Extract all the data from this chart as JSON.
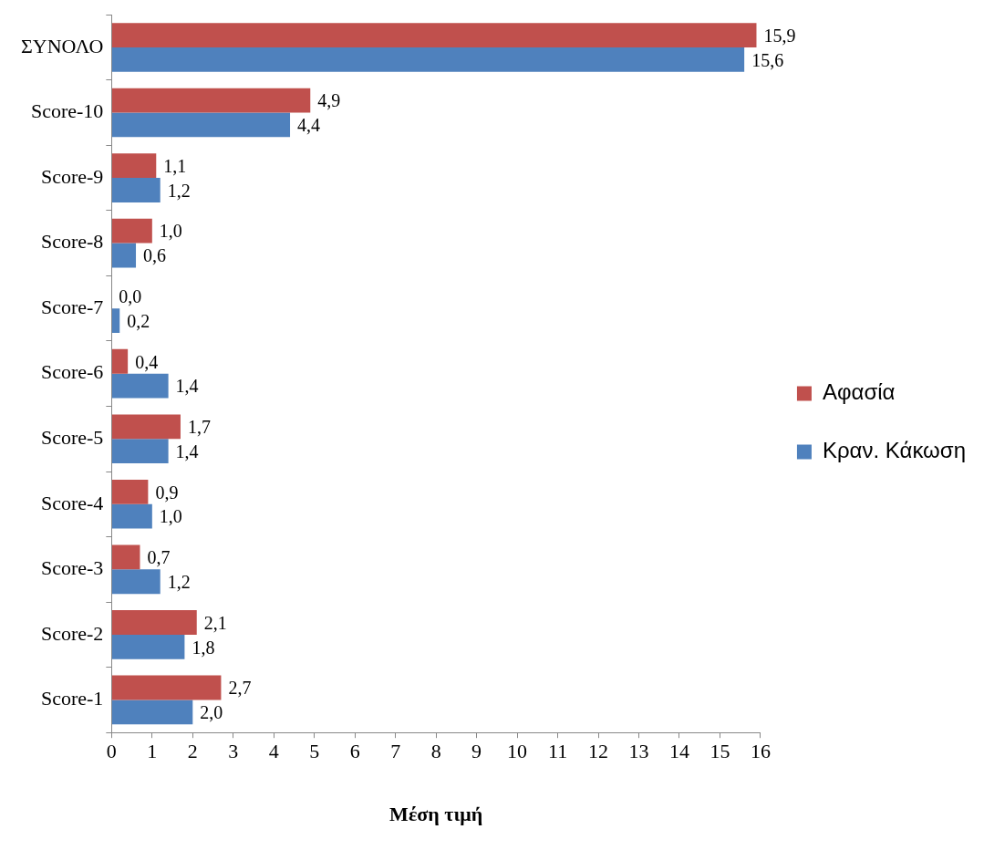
{
  "chart_data": {
    "type": "bar",
    "orientation": "horizontal",
    "xlabel": "Μέση τιμή",
    "categories": [
      "ΣΥΝΟΛΟ",
      "Score-10",
      "Score-9",
      "Score-8",
      "Score-7",
      "Score-6",
      "Score-5",
      "Score-4",
      "Score-3",
      "Score-2",
      "Score-1"
    ],
    "series": [
      {
        "name": "Αφασία",
        "color": "#c0504d",
        "values": [
          15.9,
          4.9,
          1.1,
          1.0,
          0.0,
          0.4,
          1.7,
          0.9,
          0.7,
          2.1,
          2.7
        ],
        "value_labels": [
          "15,9",
          "4,9",
          "1,1",
          "1,0",
          "0,0",
          "0,4",
          "1,7",
          "0,9",
          "0,7",
          "2,1",
          "2,7"
        ]
      },
      {
        "name": "Κραν. Κάκωση",
        "color": "#4f81bd",
        "values": [
          15.6,
          4.4,
          1.2,
          0.6,
          0.2,
          1.4,
          1.4,
          1.0,
          1.2,
          1.8,
          2.0
        ],
        "value_labels": [
          "15,6",
          "4,4",
          "1,2",
          "0,6",
          "0,2",
          "1,4",
          "1,4",
          "1,0",
          "1,2",
          "1,8",
          "2,0"
        ]
      }
    ],
    "xlim": [
      0,
      16
    ],
    "xticks": [
      0,
      1,
      2,
      3,
      4,
      5,
      6,
      7,
      8,
      9,
      10,
      11,
      12,
      13,
      14,
      15,
      16
    ],
    "grid": false,
    "legend": "right"
  }
}
